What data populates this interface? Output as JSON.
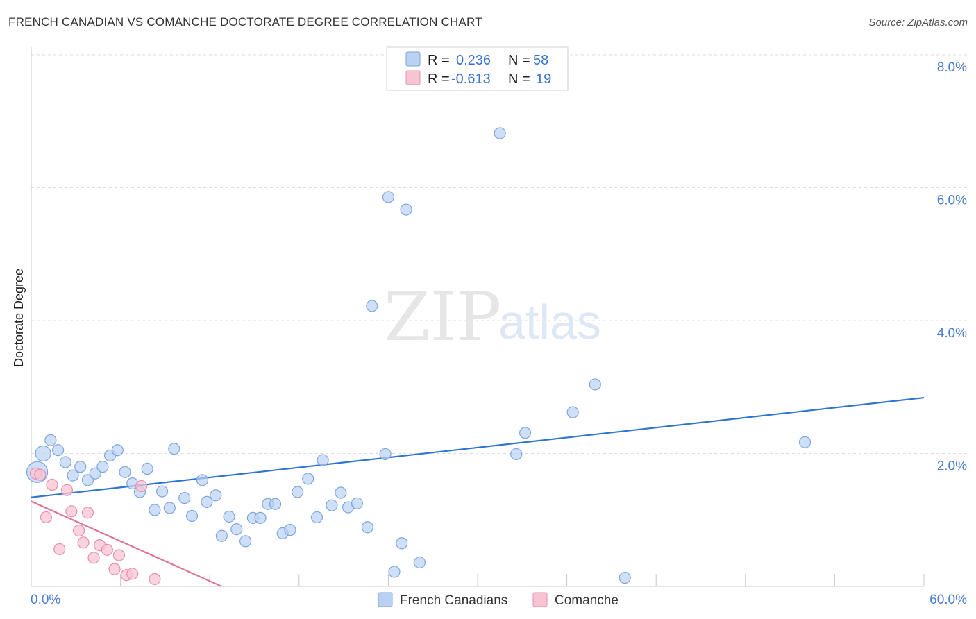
{
  "header": {
    "title": "FRENCH CANADIAN VS COMANCHE DOCTORATE DEGREE CORRELATION CHART",
    "source": "Source: ZipAtlas.com"
  },
  "watermark": {
    "part1": "ZIP",
    "part2": "atlas"
  },
  "colors": {
    "blue_fill": "#b9d1f3",
    "blue_stroke": "#7da6de",
    "blue_line": "#2f74d0",
    "pink_fill": "#f8c4d4",
    "pink_stroke": "#e88fab",
    "pink_line": "#e0739a",
    "grid": "#dcdcdc",
    "tick_text": "#4a7ed0"
  },
  "chart_data": {
    "type": "scatter",
    "title": "FRENCH CANADIAN VS COMANCHE DOCTORATE DEGREE CORRELATION CHART",
    "xlabel": "",
    "ylabel": "Doctorate Degree",
    "xlim": [
      0,
      60
    ],
    "ylim": [
      0,
      8
    ],
    "x_tick_labels": [
      "0.0%",
      "60.0%"
    ],
    "y_ticks": [
      2,
      4,
      6,
      8
    ],
    "y_tick_labels": [
      "2.0%",
      "4.0%",
      "6.0%",
      "8.0%"
    ],
    "grid": true,
    "legend": {
      "position": "top-center",
      "rows": [
        {
          "r_label": "R =",
          "r_value": "0.236",
          "n_label": "N =",
          "n_value": "58"
        },
        {
          "r_label": "R =",
          "r_value": "-0.613",
          "n_label": "N =",
          "n_value": "19"
        }
      ]
    },
    "series": [
      {
        "name": "French Canadians",
        "color": "#b9d1f3",
        "trend": {
          "x": [
            0,
            60
          ],
          "y": [
            1.34,
            2.84
          ]
        },
        "points": [
          [
            0.4,
            1.72,
            "large"
          ],
          [
            0.8,
            2.0,
            "medium"
          ],
          [
            1.3,
            2.2
          ],
          [
            1.8,
            2.05
          ],
          [
            2.3,
            1.87
          ],
          [
            2.8,
            1.67
          ],
          [
            3.3,
            1.8
          ],
          [
            3.8,
            1.6
          ],
          [
            4.3,
            1.7
          ],
          [
            4.8,
            1.8
          ],
          [
            5.3,
            1.97
          ],
          [
            5.8,
            2.05
          ],
          [
            6.3,
            1.72
          ],
          [
            6.8,
            1.55
          ],
          [
            7.3,
            1.42
          ],
          [
            7.8,
            1.77
          ],
          [
            8.3,
            1.15
          ],
          [
            8.8,
            1.43
          ],
          [
            9.3,
            1.18
          ],
          [
            9.6,
            2.07
          ],
          [
            10.3,
            1.33
          ],
          [
            10.8,
            1.06
          ],
          [
            11.5,
            1.6
          ],
          [
            11.8,
            1.27
          ],
          [
            12.4,
            1.37
          ],
          [
            12.8,
            0.76
          ],
          [
            13.3,
            1.05
          ],
          [
            13.8,
            0.86
          ],
          [
            14.4,
            0.68
          ],
          [
            14.9,
            1.03
          ],
          [
            15.4,
            1.03
          ],
          [
            15.9,
            1.24
          ],
          [
            16.4,
            1.24
          ],
          [
            16.9,
            0.8
          ],
          [
            17.4,
            0.85
          ],
          [
            17.9,
            1.42
          ],
          [
            18.6,
            1.62
          ],
          [
            19.2,
            1.04
          ],
          [
            19.6,
            1.9
          ],
          [
            20.2,
            1.22
          ],
          [
            20.8,
            1.41
          ],
          [
            21.3,
            1.19
          ],
          [
            21.9,
            1.25
          ],
          [
            22.6,
            0.89
          ],
          [
            22.9,
            4.22
          ],
          [
            23.8,
            1.99
          ],
          [
            24.4,
            0.22
          ],
          [
            24.0,
            5.86
          ],
          [
            24.9,
            0.65
          ],
          [
            25.2,
            5.67
          ],
          [
            26.1,
            0.36
          ],
          [
            31.5,
            6.82
          ],
          [
            32.6,
            1.99
          ],
          [
            33.2,
            2.31
          ],
          [
            36.4,
            2.62
          ],
          [
            37.9,
            3.04
          ],
          [
            39.9,
            0.13
          ],
          [
            52.0,
            2.17
          ]
        ]
      },
      {
        "name": "Comanche",
        "color": "#f8c4d4",
        "trend": {
          "x": [
            0,
            12.8
          ],
          "y": [
            1.28,
            0.0
          ]
        },
        "points": [
          [
            0.3,
            1.7
          ],
          [
            0.6,
            1.68
          ],
          [
            1.0,
            1.04
          ],
          [
            1.4,
            1.53
          ],
          [
            1.9,
            0.56
          ],
          [
            2.4,
            1.45
          ],
          [
            2.7,
            1.13
          ],
          [
            3.2,
            0.84
          ],
          [
            3.5,
            0.66
          ],
          [
            3.8,
            1.11
          ],
          [
            4.2,
            0.43
          ],
          [
            4.6,
            0.62
          ],
          [
            5.1,
            0.55
          ],
          [
            5.6,
            0.26
          ],
          [
            5.9,
            0.47
          ],
          [
            6.4,
            0.17
          ],
          [
            6.8,
            0.19
          ],
          [
            7.4,
            1.51
          ],
          [
            8.3,
            0.11
          ]
        ]
      }
    ]
  }
}
